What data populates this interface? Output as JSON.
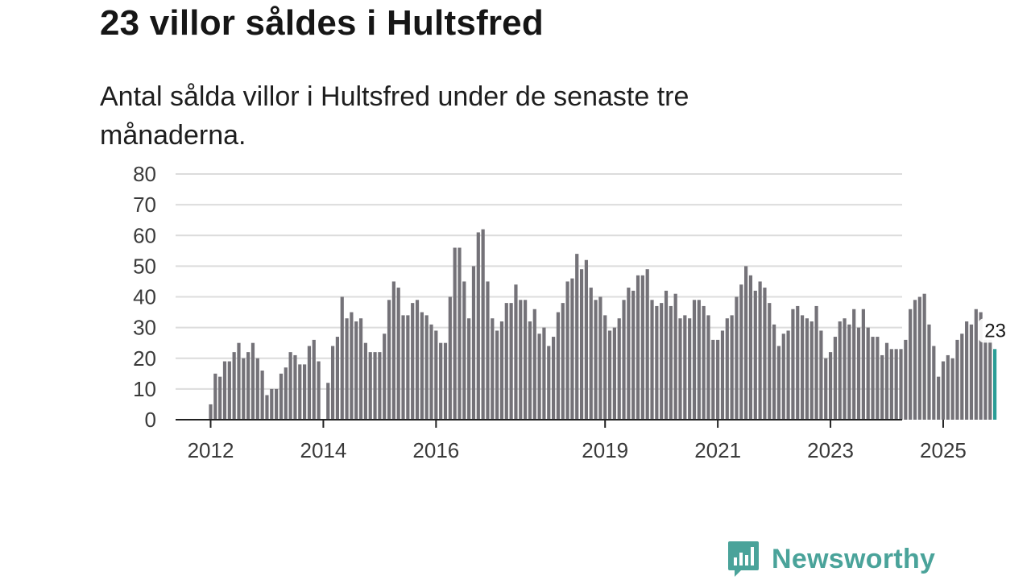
{
  "header": {
    "title": "23 villor såldes i Hultsfred",
    "subtitle": "Antal sålda villor i Hultsfred under de senaste tre månaderna."
  },
  "logo": {
    "text": "Newsworthy",
    "icon": "newsworthy-bar-chart-icon",
    "color": "#4aa39a"
  },
  "chart_data": {
    "type": "bar",
    "title": "",
    "xlabel": "",
    "ylabel": "",
    "ylim": [
      0,
      80
    ],
    "yticks": [
      0,
      10,
      20,
      30,
      40,
      50,
      60,
      70,
      80
    ],
    "grid": true,
    "bar_color": "#747278",
    "highlight_color": "#2a9d96",
    "xticks": [
      {
        "label": "2012",
        "index": 0
      },
      {
        "label": "2014",
        "index": 24
      },
      {
        "label": "2016",
        "index": 48
      },
      {
        "label": "2019",
        "index": 84
      },
      {
        "label": "2021",
        "index": 108
      },
      {
        "label": "2023",
        "index": 132
      },
      {
        "label": "2025",
        "index": 156
      }
    ],
    "start": "2012-01",
    "values": [
      5,
      15,
      14,
      19,
      19,
      22,
      25,
      20,
      22,
      25,
      20,
      16,
      8,
      10,
      10,
      15,
      17,
      22,
      21,
      18,
      18,
      24,
      26,
      19,
      0,
      12,
      24,
      27,
      40,
      33,
      35,
      32,
      33,
      25,
      22,
      22,
      22,
      28,
      39,
      45,
      43,
      34,
      34,
      38,
      39,
      35,
      34,
      31,
      29,
      25,
      25,
      40,
      56,
      56,
      45,
      33,
      50,
      61,
      62,
      45,
      33,
      29,
      32,
      38,
      38,
      44,
      39,
      39,
      32,
      36,
      28,
      30,
      24,
      27,
      35,
      38,
      45,
      46,
      54,
      49,
      52,
      43,
      39,
      40,
      34,
      29,
      30,
      33,
      39,
      43,
      42,
      47,
      47,
      49,
      39,
      37,
      38,
      42,
      37,
      41,
      33,
      34,
      33,
      39,
      39,
      37,
      34,
      26,
      26,
      29,
      33,
      34,
      40,
      44,
      50,
      47,
      42,
      45,
      43,
      38,
      31,
      24,
      28,
      29,
      36,
      37,
      34,
      33,
      32,
      37,
      29,
      20,
      22,
      27,
      32,
      33,
      31,
      36,
      30,
      36,
      30,
      27,
      27,
      21,
      25,
      23,
      23,
      23,
      26,
      36,
      39,
      40,
      41,
      31,
      24,
      14,
      19,
      21,
      20,
      26,
      28,
      32,
      31,
      36,
      35,
      26,
      26,
      23
    ],
    "highlight_index": 167,
    "annotation": {
      "label": "23",
      "index": 167,
      "value": 23
    }
  }
}
